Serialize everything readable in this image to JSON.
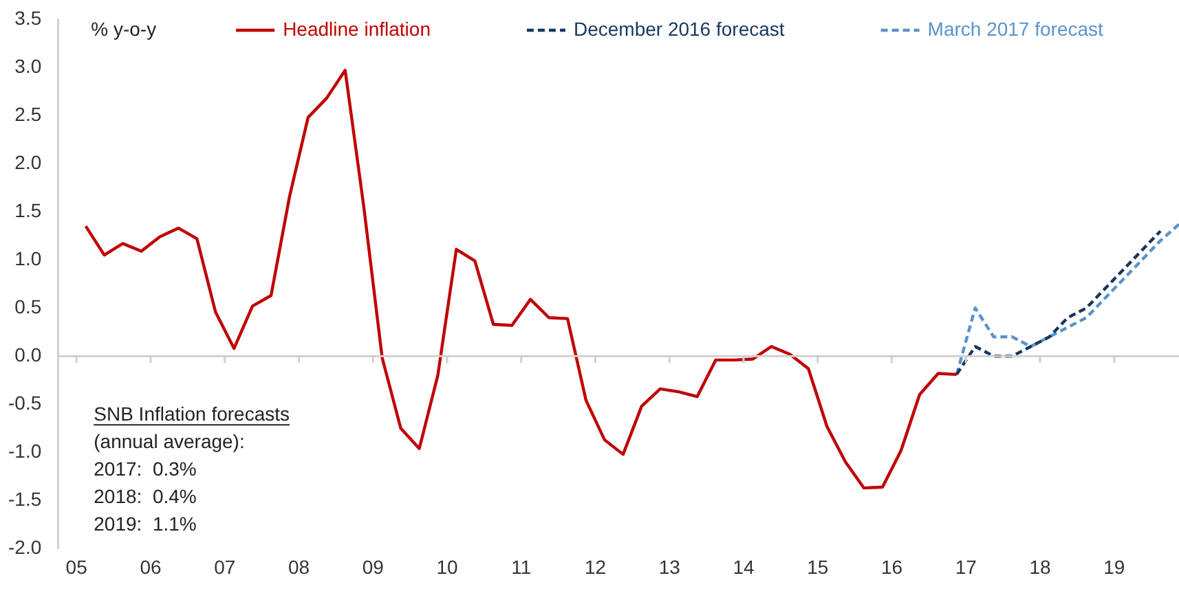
{
  "chart_data": {
    "type": "line",
    "ylabel": "% y-o-y",
    "xlim": [
      2004.75,
      2019.875
    ],
    "xticks": [
      {
        "value": 2005,
        "label": "05"
      },
      {
        "value": 2006,
        "label": "06"
      },
      {
        "value": 2007,
        "label": "07"
      },
      {
        "value": 2008,
        "label": "08"
      },
      {
        "value": 2009,
        "label": "09"
      },
      {
        "value": 2010,
        "label": "10"
      },
      {
        "value": 2011,
        "label": "11"
      },
      {
        "value": 2012,
        "label": "12"
      },
      {
        "value": 2013,
        "label": "13"
      },
      {
        "value": 2014,
        "label": "14"
      },
      {
        "value": 2015,
        "label": "15"
      },
      {
        "value": 2016,
        "label": "16"
      },
      {
        "value": 2017,
        "label": "17"
      },
      {
        "value": 2018,
        "label": "18"
      },
      {
        "value": 2019,
        "label": "19"
      }
    ],
    "ylim": [
      -2,
      3.5
    ],
    "yticks": [
      {
        "value": -2,
        "label": "-2.0"
      },
      {
        "value": -1.5,
        "label": "-1.5"
      },
      {
        "value": -1,
        "label": "-1.0"
      },
      {
        "value": -0.5,
        "label": "-0.5"
      },
      {
        "value": 0,
        "label": "0.0"
      },
      {
        "value": 0.5,
        "label": "0.5"
      },
      {
        "value": 1,
        "label": "1.0"
      },
      {
        "value": 1.5,
        "label": "1.5"
      },
      {
        "value": 2,
        "label": "2.0"
      },
      {
        "value": 2.5,
        "label": "2.5"
      },
      {
        "value": 3,
        "label": "3.0"
      },
      {
        "value": 3.5,
        "label": "3.5"
      }
    ],
    "grid": false,
    "legend": "top",
    "marker": "none",
    "ref_lines": [
      {
        "axis": "y",
        "value": 0,
        "color": "#d0d0d0"
      }
    ],
    "series": [
      {
        "name": "Headline inflation",
        "color": "#c00000",
        "line_style": "solid",
        "x": [
          2005.125,
          2005.375,
          2005.625,
          2005.875,
          2006.125,
          2006.375,
          2006.625,
          2006.875,
          2007.125,
          2007.375,
          2007.625,
          2007.875,
          2008.125,
          2008.375,
          2008.625,
          2008.875,
          2009.125,
          2009.375,
          2009.625,
          2009.875,
          2010.125,
          2010.375,
          2010.625,
          2010.875,
          2011.125,
          2011.375,
          2011.625,
          2011.875,
          2012.125,
          2012.375,
          2012.625,
          2012.875,
          2013.125,
          2013.375,
          2013.625,
          2013.875,
          2014.125,
          2014.375,
          2014.625,
          2014.875,
          2015.125,
          2015.375,
          2015.625,
          2015.875,
          2016.125,
          2016.375,
          2016.625,
          2016.875
        ],
        "values": [
          1.35,
          1.05,
          1.17,
          1.09,
          1.24,
          1.33,
          1.22,
          0.46,
          0.08,
          0.52,
          0.63,
          1.66,
          2.48,
          2.68,
          2.97,
          1.56,
          -0.02,
          -0.75,
          -0.96,
          -0.2,
          1.11,
          0.99,
          0.33,
          0.32,
          0.59,
          0.4,
          0.39,
          -0.46,
          -0.87,
          -1.02,
          -0.52,
          -0.34,
          -0.37,
          -0.42,
          -0.04,
          -0.04,
          -0.03,
          0.1,
          0.02,
          -0.13,
          -0.73,
          -1.1,
          -1.37,
          -1.36,
          -0.98,
          -0.4,
          -0.18,
          -0.19
        ]
      },
      {
        "name": "December 2016 forecast",
        "color": "#17375e",
        "line_style": "dashed",
        "x": [
          2016.875,
          2017.125,
          2017.375,
          2017.625,
          2017.875,
          2018.125,
          2018.375,
          2018.625,
          2018.875,
          2019.125,
          2019.375,
          2019.625
        ],
        "values": [
          -0.19,
          0.1,
          0.0,
          0.0,
          0.1,
          0.2,
          0.4,
          0.5,
          0.7,
          0.9,
          1.1,
          1.3
        ]
      },
      {
        "name": "March 2017 forecast",
        "color": "#5b93c9",
        "line_style": "dashed",
        "x": [
          2016.875,
          2017.125,
          2017.375,
          2017.625,
          2017.875,
          2018.125,
          2018.375,
          2018.625,
          2018.875,
          2019.125,
          2019.375,
          2019.625,
          2019.875
        ],
        "values": [
          -0.19,
          0.5,
          0.2,
          0.2,
          0.1,
          0.2,
          0.3,
          0.4,
          0.6,
          0.8,
          1.0,
          1.2,
          1.37
        ]
      }
    ],
    "annotations": [
      "SNB Inflation forecasts",
      "(annual average):",
      "2017:  0.3%",
      "2018:  0.4%",
      "2019:  1.1%"
    ]
  }
}
